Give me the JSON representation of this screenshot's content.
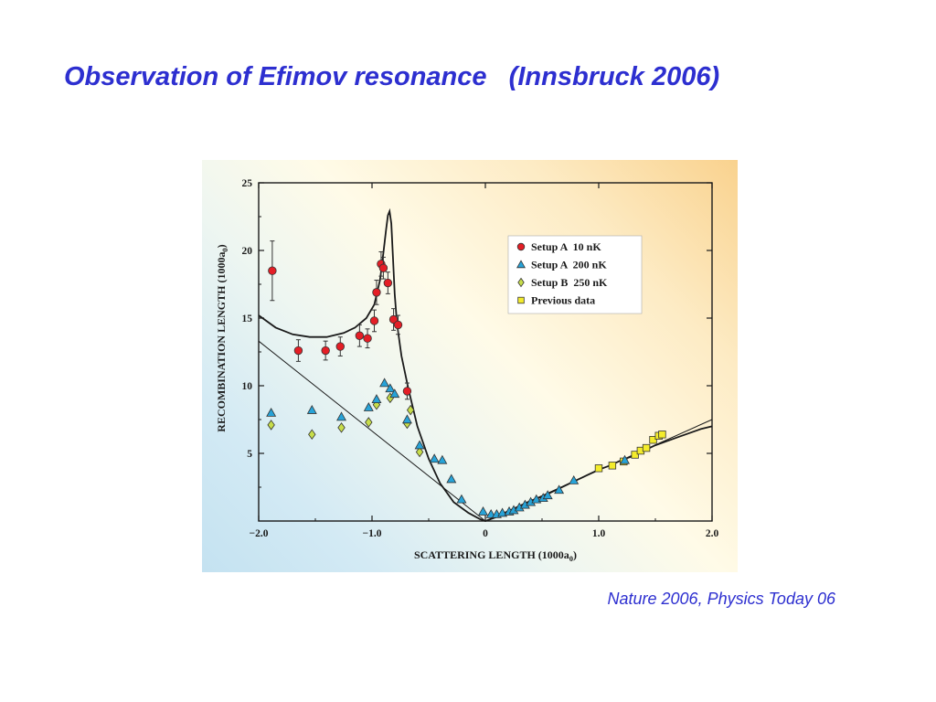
{
  "slide": {
    "title": "Observation of Efimov resonance   (Innsbruck 2006)",
    "citation": "Nature 2006, Physics Today 06"
  },
  "chart_data": {
    "type": "scatter",
    "title": "",
    "xlabel": "SCATTERING LENGTH (1000a",
    "xlabel_subscript": "0",
    "xlabel_suffix": ")",
    "ylabel": "RECOMBINATION LENGTH (1000a",
    "ylabel_subscript": "0",
    "ylabel_suffix": ")",
    "xlim": [
      -2.0,
      2.0
    ],
    "ylim": [
      0,
      25
    ],
    "x_ticks": [
      "−2.0",
      "−1.0",
      "0",
      "1.0",
      "2.0"
    ],
    "y_ticks": [
      "5",
      "10",
      "15",
      "20",
      "25"
    ],
    "grid": false,
    "legend_position": "top-right",
    "colors": {
      "setup_a_10nk": "#e41e26",
      "setup_a_200nk": "#27a3d8",
      "setup_b_250nk": "#c7dd4a",
      "previous": "#f4ec2c"
    },
    "series": [
      {
        "name": "Setup A  10 nK",
        "marker": "circle",
        "points": [
          {
            "x": -1.88,
            "y": 18.5,
            "err": 2.2
          },
          {
            "x": -1.65,
            "y": 12.6,
            "err": 0.8
          },
          {
            "x": -1.41,
            "y": 12.6,
            "err": 0.7
          },
          {
            "x": -1.28,
            "y": 12.9,
            "err": 0.7
          },
          {
            "x": -1.11,
            "y": 13.7,
            "err": 0.8
          },
          {
            "x": -1.04,
            "y": 13.5,
            "err": 0.7
          },
          {
            "x": -0.98,
            "y": 14.8,
            "err": 0.8
          },
          {
            "x": -0.96,
            "y": 16.9,
            "err": 0.9
          },
          {
            "x": -0.92,
            "y": 19.0,
            "err": 0.9
          },
          {
            "x": -0.9,
            "y": 18.7,
            "err": 0.8
          },
          {
            "x": -0.86,
            "y": 17.6,
            "err": 0.8
          },
          {
            "x": -0.81,
            "y": 14.9,
            "err": 0.8
          },
          {
            "x": -0.77,
            "y": 14.5,
            "err": 0.7
          },
          {
            "x": -0.69,
            "y": 9.6,
            "err": 0.6
          }
        ]
      },
      {
        "name": "Setup A  200 nK",
        "marker": "triangle",
        "points": [
          {
            "x": -1.89,
            "y": 8.0
          },
          {
            "x": -1.53,
            "y": 8.2
          },
          {
            "x": -1.27,
            "y": 7.7
          },
          {
            "x": -1.03,
            "y": 8.4
          },
          {
            "x": -0.96,
            "y": 9.0
          },
          {
            "x": -0.89,
            "y": 10.2
          },
          {
            "x": -0.84,
            "y": 9.8
          },
          {
            "x": -0.8,
            "y": 9.4
          },
          {
            "x": -0.69,
            "y": 7.5
          },
          {
            "x": -0.58,
            "y": 5.6
          },
          {
            "x": -0.45,
            "y": 4.6
          },
          {
            "x": -0.38,
            "y": 4.5
          },
          {
            "x": -0.3,
            "y": 3.1
          },
          {
            "x": -0.21,
            "y": 1.6
          },
          {
            "x": -0.02,
            "y": 0.7
          },
          {
            "x": 0.05,
            "y": 0.5
          },
          {
            "x": 0.1,
            "y": 0.5
          },
          {
            "x": 0.15,
            "y": 0.6
          },
          {
            "x": 0.21,
            "y": 0.7
          },
          {
            "x": 0.25,
            "y": 0.8
          },
          {
            "x": 0.3,
            "y": 1.0
          },
          {
            "x": 0.35,
            "y": 1.2
          },
          {
            "x": 0.4,
            "y": 1.4
          },
          {
            "x": 0.45,
            "y": 1.6
          },
          {
            "x": 0.51,
            "y": 1.7
          },
          {
            "x": 0.55,
            "y": 1.9
          },
          {
            "x": 0.65,
            "y": 2.3
          },
          {
            "x": 0.78,
            "y": 3.0
          },
          {
            "x": 1.23,
            "y": 4.5
          }
        ]
      },
      {
        "name": "Setup B  250 nK",
        "marker": "diamond",
        "points": [
          {
            "x": -1.89,
            "y": 7.1
          },
          {
            "x": -1.53,
            "y": 6.4
          },
          {
            "x": -1.27,
            "y": 6.9
          },
          {
            "x": -1.03,
            "y": 7.3
          },
          {
            "x": -0.96,
            "y": 8.6
          },
          {
            "x": -0.84,
            "y": 9.1
          },
          {
            "x": -0.69,
            "y": 7.2
          },
          {
            "x": -0.66,
            "y": 8.2
          },
          {
            "x": -0.58,
            "y": 5.1
          }
        ]
      },
      {
        "name": "Previous data",
        "marker": "square",
        "points": [
          {
            "x": 1.0,
            "y": 3.9
          },
          {
            "x": 1.12,
            "y": 4.1
          },
          {
            "x": 1.22,
            "y": 4.4
          },
          {
            "x": 1.32,
            "y": 4.9
          },
          {
            "x": 1.37,
            "y": 5.2
          },
          {
            "x": 1.42,
            "y": 5.4
          },
          {
            "x": 1.48,
            "y": 6.0
          },
          {
            "x": 1.53,
            "y": 6.3
          },
          {
            "x": 1.56,
            "y": 6.4
          }
        ]
      }
    ]
  }
}
